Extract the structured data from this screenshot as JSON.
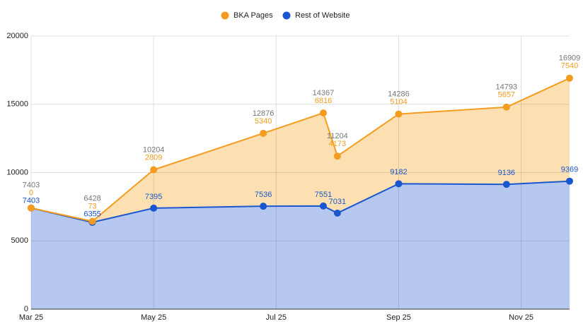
{
  "chart_data": {
    "type": "stacked-area",
    "x": [
      3,
      4,
      5,
      6.79,
      7.77,
      8,
      9,
      10.76,
      11.79
    ],
    "xlim": [
      3,
      11.79
    ],
    "xticks": [
      {
        "value": 3,
        "label": "Mar 25"
      },
      {
        "value": 5,
        "label": "May 25"
      },
      {
        "value": 7,
        "label": "Jul 25"
      },
      {
        "value": 9,
        "label": "Sep 25"
      },
      {
        "value": 11,
        "label": "Nov 25"
      }
    ],
    "ylim": [
      0,
      20000
    ],
    "yticks": [
      0,
      5000,
      10000,
      15000,
      20000
    ],
    "grid": true,
    "legend": "top",
    "series": [
      {
        "name": "Rest of Website",
        "color": "#1a56cf",
        "fill": "#b7c8f0",
        "values": [
          7403,
          6355,
          7395,
          7536,
          7551,
          7031,
          9182,
          9136,
          9369
        ]
      },
      {
        "name": "BKA Pages",
        "color": "#f39c1f",
        "fill": "#fde0b2",
        "values": [
          0,
          73,
          2809,
          5340,
          6816,
          4173,
          5104,
          5657,
          7540
        ]
      }
    ],
    "totals": [
      7403,
      6428,
      10204,
      12876,
      14367,
      11204,
      14286,
      14793,
      16909
    ],
    "totals_color": "#777777"
  }
}
